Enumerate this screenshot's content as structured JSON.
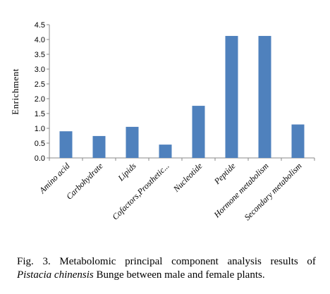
{
  "chart_data": {
    "type": "bar",
    "title": "",
    "xlabel": "",
    "ylabel": "Enrichment",
    "ylim": [
      0,
      4.5
    ],
    "yticks": [
      "0.0",
      "0.5",
      "1.0",
      "1.5",
      "2.0",
      "2.5",
      "3.0",
      "3.5",
      "4.0",
      "4.5"
    ],
    "categories": [
      "Amino acid",
      "Carbohydrate",
      "Lipids",
      "Cofactors,Prosthetic...",
      "Nucleotide",
      "Peptide",
      "Hormone metabolism",
      "Secondary metabolism"
    ],
    "values": [
      0.9,
      0.74,
      1.05,
      0.45,
      1.76,
      4.12,
      4.12,
      1.13
    ],
    "bar_color": "#4f81bd",
    "grid": false,
    "legend": "none"
  },
  "caption": {
    "words": [
      "Fig.",
      "3.",
      "Metabolomic",
      "principal",
      "component",
      "analysis",
      "results",
      "of"
    ],
    "species": "Pistacia chinensis",
    "rest": " Bunge between male and female plants."
  }
}
